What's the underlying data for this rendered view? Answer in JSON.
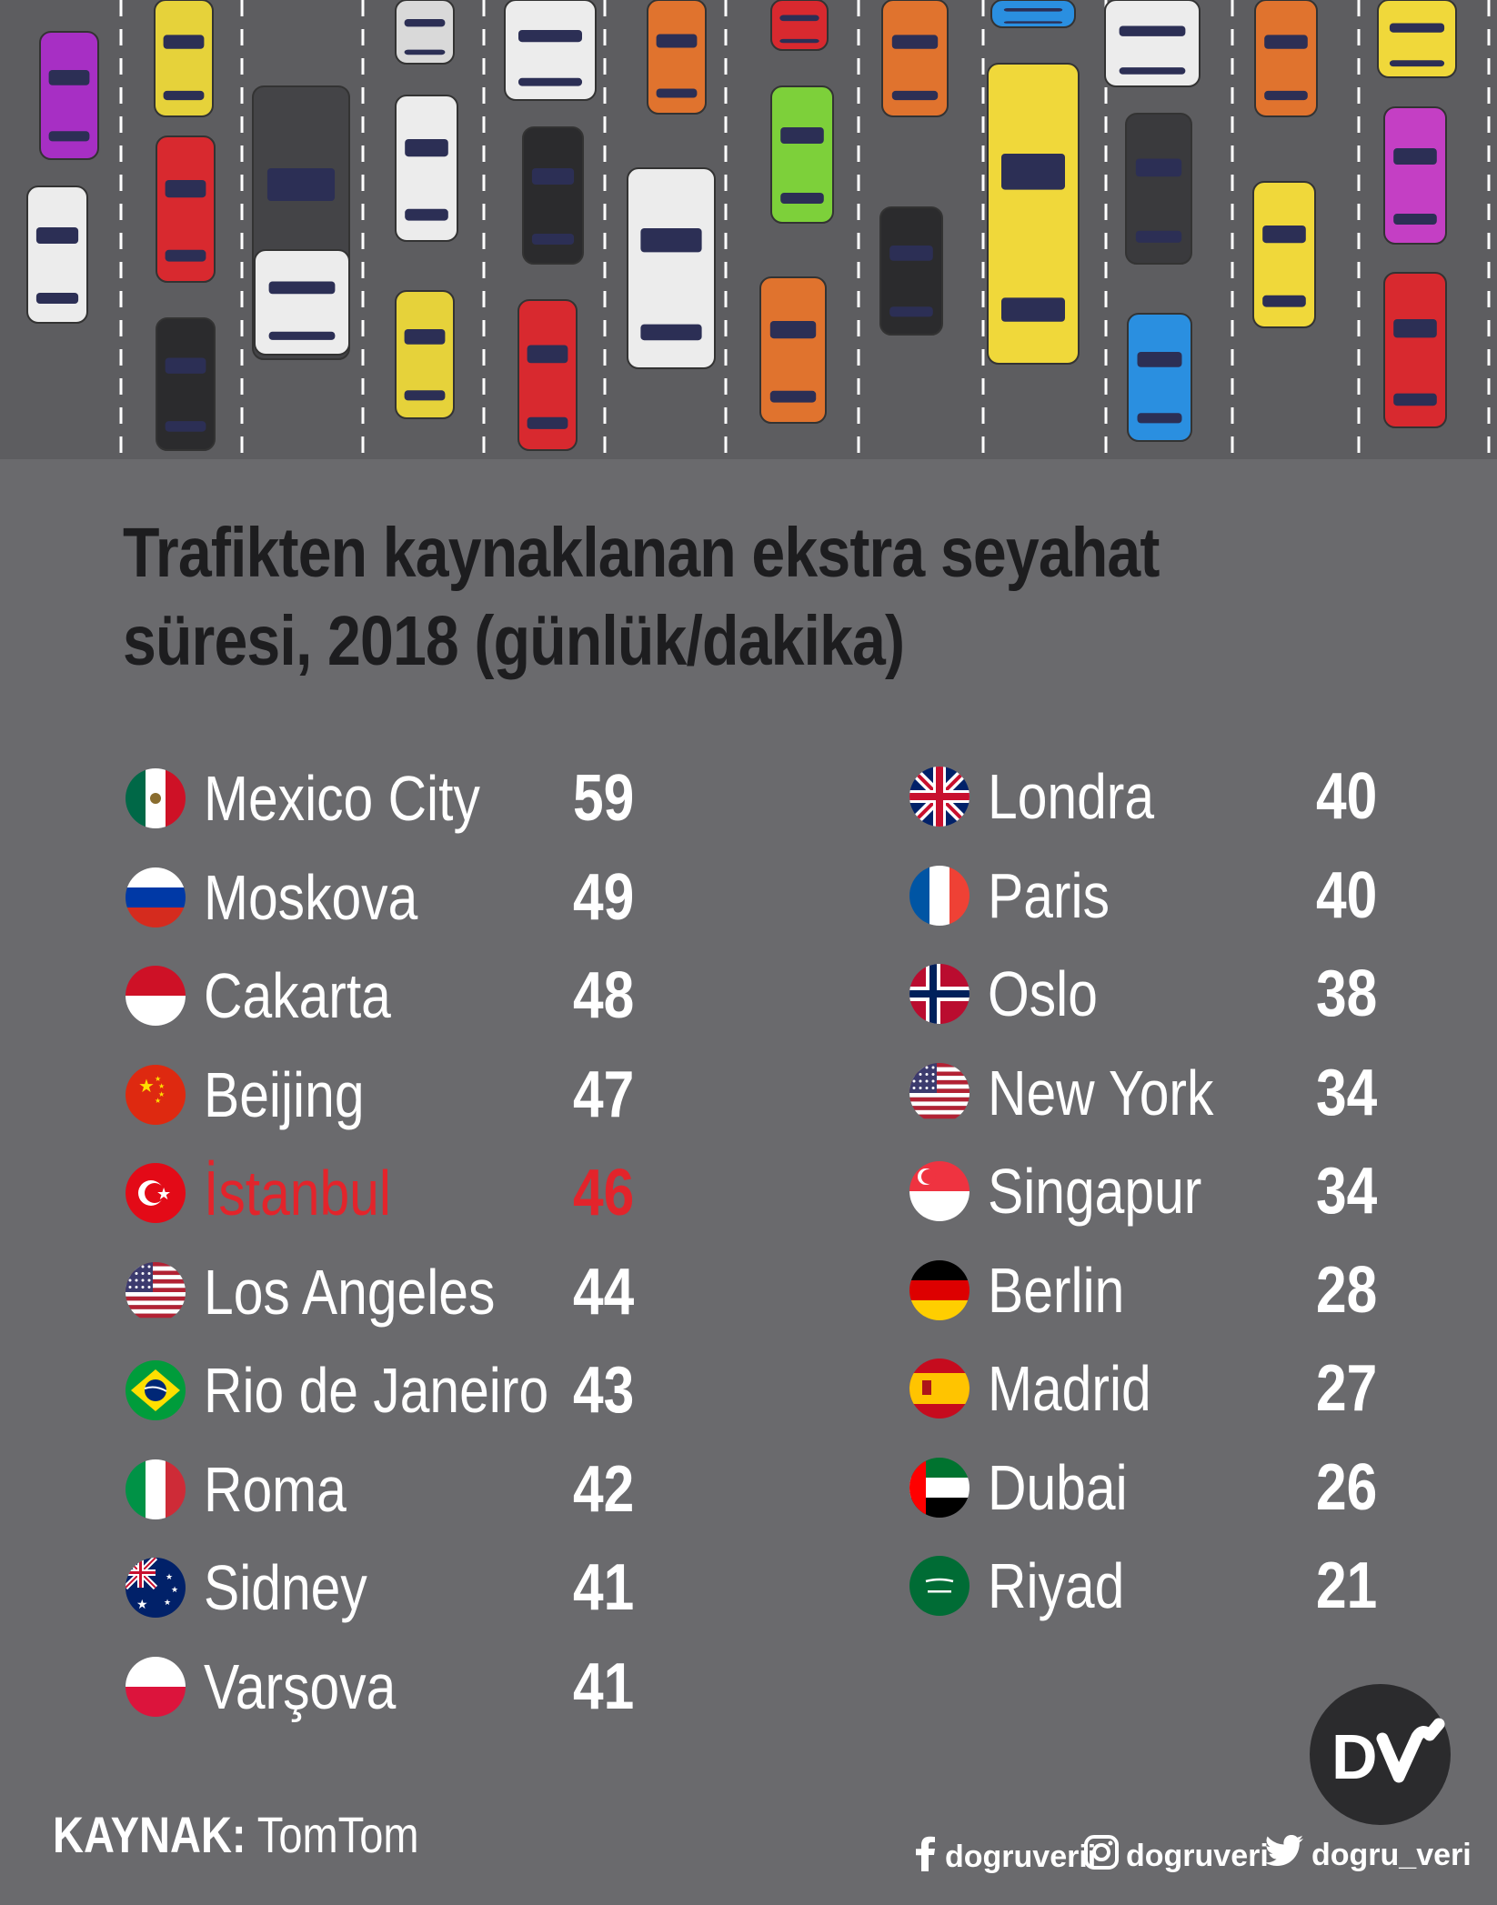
{
  "title": "Trafikten kaynaklanan ekstra seyahat süresi, 2018 (günlük/dakika)",
  "left_rows": [
    {
      "city": "Mexico City",
      "value": "59",
      "flag": "mexico-flag-icon"
    },
    {
      "city": "Moskova",
      "value": "49",
      "flag": "russia-flag-icon"
    },
    {
      "city": "Cakarta",
      "value": "48",
      "flag": "indonesia-flag-icon"
    },
    {
      "city": "Beijing",
      "value": "47",
      "flag": "china-flag-icon"
    },
    {
      "city": "İstanbul",
      "value": "46",
      "flag": "turkey-flag-icon",
      "highlight": true
    },
    {
      "city": "Los Angeles",
      "value": "44",
      "flag": "usa-flag-icon"
    },
    {
      "city": "Rio de Janeiro",
      "value": "43",
      "flag": "brazil-flag-icon"
    },
    {
      "city": "Roma",
      "value": "42",
      "flag": "italy-flag-icon"
    },
    {
      "city": "Sidney",
      "value": "41",
      "flag": "australia-flag-icon"
    },
    {
      "city": "Varşova",
      "value": "41",
      "flag": "poland-flag-icon"
    }
  ],
  "right_rows": [
    {
      "city": "Londra",
      "value": "40",
      "flag": "uk-flag-icon"
    },
    {
      "city": "Paris",
      "value": "40",
      "flag": "france-flag-icon"
    },
    {
      "city": "Oslo",
      "value": "38",
      "flag": "norway-flag-icon"
    },
    {
      "city": "New York",
      "value": "34",
      "flag": "usa-flag-icon"
    },
    {
      "city": "Singapur",
      "value": "34",
      "flag": "singapore-flag-icon"
    },
    {
      "city": "Berlin",
      "value": "28",
      "flag": "germany-flag-icon"
    },
    {
      "city": "Madrid",
      "value": "27",
      "flag": "spain-flag-icon"
    },
    {
      "city": "Dubai",
      "value": "26",
      "flag": "uae-flag-icon"
    },
    {
      "city": "Riyad",
      "value": "21",
      "flag": "saudi-flag-icon"
    }
  ],
  "source_label": "KAYNAK:",
  "source_value": "TomTom",
  "social": {
    "facebook": "dogruverii",
    "instagram": "dogruveri",
    "twitter": "dogru_veri"
  },
  "colors": {
    "background": "#6a6a6d",
    "road": "#5d5d60",
    "highlight": "#e3242b",
    "title": "#1d1d1f"
  }
}
